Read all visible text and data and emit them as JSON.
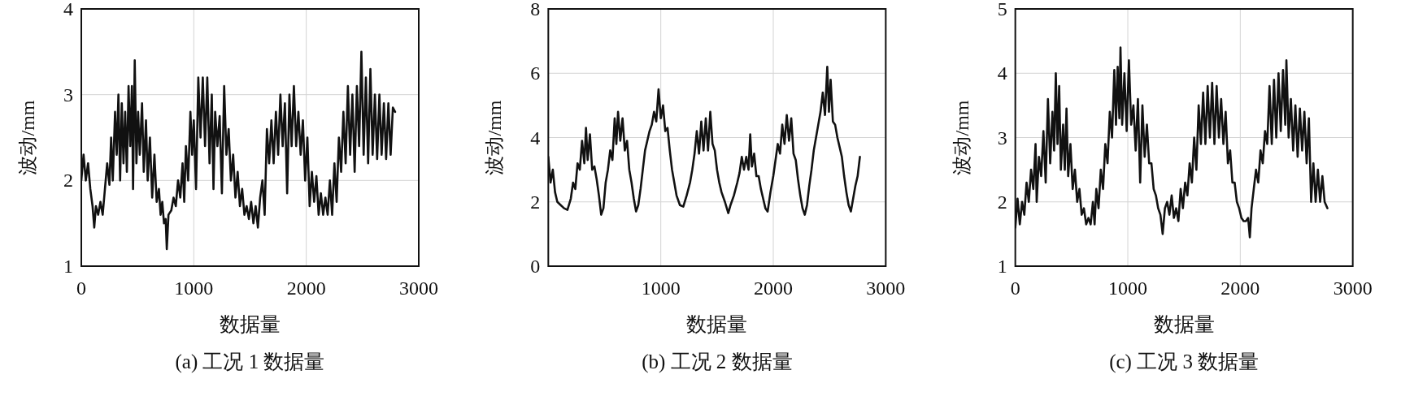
{
  "chart_data": [
    {
      "type": "line",
      "title": "(a) 工况 1 数据量",
      "xlabel": "数据量",
      "ylabel": "波动/mm",
      "xlim": [
        0,
        3000
      ],
      "ylim": [
        1,
        4
      ],
      "xticks": [
        0,
        1000,
        2000,
        3000
      ],
      "yticks": [
        1,
        2,
        3,
        4
      ],
      "grid": true,
      "series": [
        {
          "color": "#111111",
          "x": [
            0,
            20,
            40,
            60,
            80,
            100,
            115,
            130,
            150,
            170,
            190,
            210,
            230,
            250,
            265,
            280,
            300,
            315,
            330,
            345,
            360,
            375,
            390,
            405,
            420,
            435,
            450,
            460,
            475,
            490,
            505,
            520,
            540,
            555,
            575,
            590,
            610,
            630,
            650,
            670,
            690,
            705,
            720,
            735,
            750,
            760,
            775,
            800,
            820,
            840,
            860,
            880,
            900,
            915,
            930,
            950,
            970,
            985,
            1000,
            1020,
            1040,
            1060,
            1080,
            1100,
            1120,
            1140,
            1160,
            1175,
            1190,
            1210,
            1230,
            1250,
            1270,
            1290,
            1310,
            1330,
            1350,
            1370,
            1390,
            1410,
            1430,
            1450,
            1470,
            1490,
            1510,
            1530,
            1550,
            1570,
            1590,
            1610,
            1630,
            1650,
            1670,
            1690,
            1710,
            1730,
            1750,
            1770,
            1790,
            1810,
            1830,
            1850,
            1870,
            1890,
            1910,
            1930,
            1950,
            1970,
            1990,
            2010,
            2030,
            2050,
            2070,
            2090,
            2110,
            2130,
            2150,
            2170,
            2190,
            2210,
            2230,
            2250,
            2270,
            2290,
            2310,
            2330,
            2350,
            2370,
            2390,
            2410,
            2430,
            2450,
            2470,
            2490,
            2510,
            2530,
            2550,
            2570,
            2590,
            2610,
            2630,
            2650,
            2670,
            2690,
            2710,
            2730,
            2750,
            2770,
            2790
          ],
          "values": [
            2.0,
            2.3,
            2.0,
            2.2,
            1.9,
            1.7,
            1.45,
            1.7,
            1.6,
            1.75,
            1.6,
            1.9,
            2.2,
            1.95,
            2.5,
            2.0,
            2.8,
            2.3,
            3.0,
            2.0,
            2.9,
            2.2,
            2.8,
            2.1,
            3.1,
            2.4,
            3.1,
            1.9,
            3.4,
            2.2,
            2.8,
            2.3,
            2.9,
            2.1,
            2.7,
            2.0,
            2.5,
            1.8,
            2.3,
            1.75,
            1.9,
            1.6,
            1.75,
            1.5,
            1.55,
            1.2,
            1.6,
            1.65,
            1.8,
            1.7,
            2.0,
            1.8,
            2.2,
            1.75,
            2.4,
            2.0,
            2.8,
            2.3,
            2.7,
            1.9,
            3.2,
            2.5,
            3.2,
            2.4,
            3.2,
            2.2,
            3.0,
            1.9,
            2.8,
            2.4,
            2.75,
            1.85,
            3.1,
            2.3,
            2.6,
            2.0,
            2.3,
            1.8,
            2.1,
            1.7,
            1.9,
            1.6,
            1.7,
            1.55,
            1.75,
            1.5,
            1.7,
            1.45,
            1.8,
            2.0,
            1.6,
            2.6,
            2.2,
            2.7,
            2.2,
            2.8,
            2.3,
            3.0,
            2.4,
            2.9,
            1.85,
            3.0,
            2.4,
            3.1,
            2.4,
            2.8,
            2.3,
            2.7,
            2.0,
            2.5,
            1.7,
            2.1,
            1.75,
            2.05,
            1.6,
            1.85,
            1.6,
            1.8,
            1.6,
            2.0,
            1.6,
            2.2,
            1.75,
            2.5,
            2.1,
            2.8,
            2.2,
            3.1,
            2.3,
            3.0,
            2.1,
            3.1,
            2.4,
            3.5,
            2.3,
            3.2,
            2.2,
            3.3,
            2.3,
            3.0,
            2.25,
            3.0,
            2.3,
            2.9,
            2.25,
            2.9,
            2.3,
            2.85,
            2.8
          ]
        }
      ]
    },
    {
      "type": "line",
      "title": "(b) 工况 2 数据量",
      "xlabel": "数据量",
      "ylabel": "波动/mm",
      "xlim": [
        0,
        3000
      ],
      "ylim": [
        0,
        8
      ],
      "xticks": [
        1000,
        2000,
        3000
      ],
      "yticks": [
        0,
        2,
        4,
        6,
        8
      ],
      "grid": true,
      "series": [
        {
          "color": "#111111",
          "x": [
            0,
            20,
            40,
            60,
            80,
            110,
            140,
            170,
            200,
            220,
            240,
            260,
            280,
            300,
            320,
            335,
            350,
            370,
            390,
            410,
            430,
            450,
            470,
            490,
            510,
            530,
            550,
            570,
            590,
            605,
            620,
            640,
            660,
            680,
            700,
            720,
            740,
            760,
            780,
            800,
            820,
            840,
            860,
            880,
            900,
            920,
            940,
            960,
            980,
            1000,
            1020,
            1040,
            1060,
            1080,
            1100,
            1120,
            1140,
            1170,
            1200,
            1230,
            1260,
            1280,
            1300,
            1320,
            1340,
            1360,
            1380,
            1400,
            1420,
            1440,
            1460,
            1480,
            1500,
            1520,
            1540,
            1570,
            1600,
            1620,
            1650,
            1680,
            1700,
            1720,
            1740,
            1760,
            1780,
            1795,
            1810,
            1830,
            1850,
            1870,
            1890,
            1910,
            1930,
            1950,
            1975,
            2000,
            2020,
            2040,
            2060,
            2080,
            2100,
            2120,
            2140,
            2160,
            2180,
            2200,
            2220,
            2240,
            2260,
            2280,
            2300,
            2320,
            2340,
            2360,
            2380,
            2400,
            2420,
            2440,
            2460,
            2480,
            2495,
            2510,
            2530,
            2550,
            2570,
            2590,
            2610,
            2630,
            2650,
            2670,
            2690,
            2710,
            2730,
            2750,
            2770
          ],
          "values": [
            3.4,
            2.6,
            3.0,
            2.3,
            2.0,
            1.9,
            1.8,
            1.75,
            2.1,
            2.6,
            2.4,
            3.2,
            3.0,
            3.9,
            3.2,
            4.3,
            3.3,
            4.1,
            3.0,
            3.1,
            2.7,
            2.2,
            1.6,
            1.8,
            2.6,
            3.0,
            3.6,
            3.3,
            4.6,
            3.8,
            4.8,
            3.9,
            4.6,
            3.6,
            3.9,
            3.0,
            2.6,
            2.1,
            1.7,
            1.9,
            2.4,
            3.0,
            3.6,
            3.9,
            4.2,
            4.4,
            4.8,
            4.5,
            5.5,
            4.6,
            5.0,
            4.2,
            4.3,
            3.6,
            3.0,
            2.6,
            2.2,
            1.9,
            1.85,
            2.2,
            2.6,
            3.0,
            3.5,
            4.2,
            3.5,
            4.5,
            3.6,
            4.6,
            3.6,
            4.8,
            3.8,
            3.6,
            3.0,
            2.6,
            2.3,
            2.0,
            1.65,
            1.9,
            2.2,
            2.6,
            2.9,
            3.4,
            3.0,
            3.4,
            3.0,
            4.1,
            3.1,
            3.5,
            2.8,
            2.8,
            2.4,
            2.1,
            1.8,
            1.7,
            2.3,
            2.8,
            3.3,
            3.8,
            3.5,
            4.4,
            3.8,
            4.7,
            3.9,
            4.6,
            3.5,
            3.3,
            2.7,
            2.2,
            1.8,
            1.6,
            1.9,
            2.5,
            3.0,
            3.6,
            4.0,
            4.4,
            4.8,
            5.4,
            4.7,
            6.2,
            4.8,
            5.8,
            4.5,
            4.4,
            4.0,
            3.7,
            3.4,
            2.8,
            2.3,
            1.9,
            1.7,
            2.1,
            2.5,
            2.8,
            3.4
          ]
        }
      ]
    },
    {
      "type": "line",
      "title": "(c) 工况 3 数据量",
      "xlabel": "数据量",
      "ylabel": "波动/mm",
      "xlim": [
        0,
        3000
      ],
      "ylim": [
        1,
        5
      ],
      "xticks": [
        0,
        1000,
        2000,
        3000
      ],
      "yticks": [
        1,
        2,
        3,
        4,
        5
      ],
      "grid": true,
      "series": [
        {
          "color": "#111111",
          "x": [
            0,
            20,
            40,
            60,
            80,
            100,
            120,
            140,
            160,
            180,
            190,
            210,
            230,
            250,
            270,
            290,
            310,
            330,
            345,
            360,
            375,
            390,
            405,
            425,
            440,
            455,
            470,
            490,
            510,
            530,
            550,
            570,
            590,
            610,
            630,
            650,
            670,
            690,
            705,
            720,
            740,
            760,
            780,
            800,
            820,
            840,
            860,
            880,
            895,
            910,
            925,
            935,
            950,
            970,
            990,
            1010,
            1030,
            1050,
            1070,
            1090,
            1110,
            1130,
            1150,
            1170,
            1190,
            1210,
            1230,
            1250,
            1270,
            1290,
            1310,
            1330,
            1350,
            1370,
            1390,
            1410,
            1430,
            1450,
            1470,
            1490,
            1510,
            1530,
            1550,
            1570,
            1590,
            1610,
            1630,
            1650,
            1670,
            1690,
            1710,
            1730,
            1750,
            1770,
            1790,
            1810,
            1830,
            1850,
            1870,
            1890,
            1910,
            1930,
            1950,
            1970,
            1990,
            2010,
            2030,
            2050,
            2070,
            2085,
            2100,
            2120,
            2140,
            2160,
            2180,
            2200,
            2220,
            2240,
            2260,
            2280,
            2300,
            2320,
            2340,
            2360,
            2380,
            2400,
            2410,
            2430,
            2450,
            2470,
            2490,
            2510,
            2530,
            2550,
            2570,
            2590,
            2610,
            2630,
            2650,
            2670,
            2690,
            2710,
            2730,
            2750,
            2775
          ],
          "values": [
            1.6,
            2.05,
            1.65,
            2.0,
            1.8,
            2.3,
            2.0,
            2.5,
            2.2,
            2.9,
            2.0,
            2.7,
            2.4,
            3.1,
            2.3,
            3.6,
            2.6,
            3.4,
            2.8,
            4.0,
            2.9,
            3.8,
            2.5,
            3.2,
            2.5,
            3.45,
            2.4,
            2.9,
            2.2,
            2.5,
            2.0,
            2.2,
            1.8,
            1.9,
            1.65,
            1.75,
            1.65,
            2.0,
            1.65,
            2.2,
            1.9,
            2.5,
            2.2,
            2.9,
            2.6,
            3.4,
            3.0,
            4.05,
            3.2,
            4.1,
            3.3,
            4.4,
            3.2,
            4.0,
            3.1,
            4.2,
            3.2,
            3.5,
            2.8,
            3.6,
            2.3,
            3.5,
            2.7,
            3.2,
            2.6,
            2.6,
            2.2,
            2.1,
            1.9,
            1.8,
            1.5,
            1.9,
            2.0,
            1.8,
            2.1,
            1.75,
            1.9,
            1.7,
            2.2,
            1.9,
            2.3,
            2.1,
            2.6,
            2.3,
            3.0,
            2.5,
            3.5,
            2.9,
            3.7,
            2.9,
            3.8,
            3.0,
            3.85,
            2.9,
            3.8,
            3.0,
            3.6,
            2.9,
            3.4,
            2.6,
            2.8,
            2.3,
            2.3,
            2.0,
            1.9,
            1.75,
            1.7,
            1.7,
            1.75,
            1.45,
            1.9,
            2.2,
            2.5,
            2.3,
            2.8,
            2.6,
            3.1,
            2.9,
            3.8,
            2.9,
            3.9,
            3.0,
            4.0,
            3.1,
            4.05,
            3.2,
            4.2,
            3.0,
            3.6,
            2.8,
            3.5,
            2.7,
            3.45,
            2.8,
            3.4,
            2.6,
            3.3,
            2.0,
            2.6,
            2.0,
            2.5,
            2.0,
            2.4,
            2.0,
            1.9
          ]
        }
      ]
    }
  ]
}
